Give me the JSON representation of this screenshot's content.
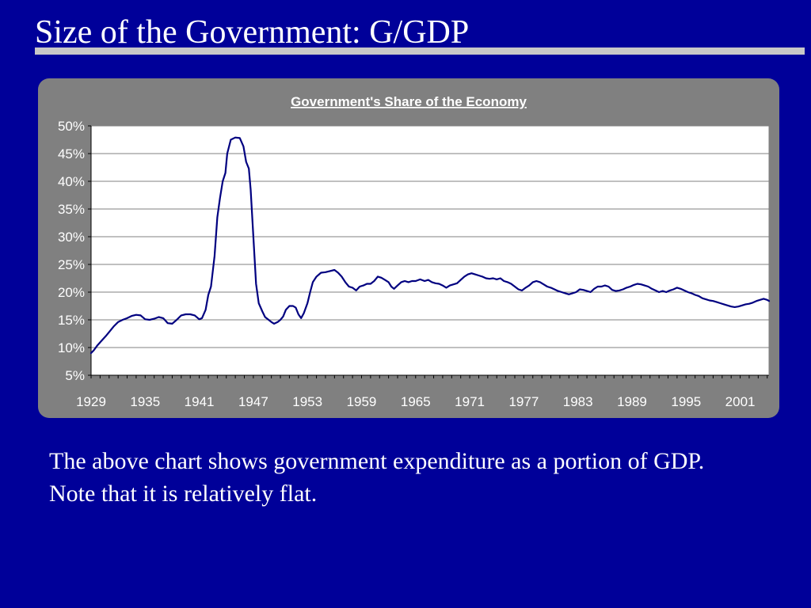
{
  "slide": {
    "title": "Size of the Government: G/GDP",
    "body_text": "The above chart shows government expenditure as a portion of GDP. Note that it is relatively flat."
  },
  "colors": {
    "background": "#000099",
    "panel": "#808080",
    "plot_area": "#ffffff",
    "series_line": "#000080",
    "rule": "#c8c8c8"
  },
  "chart_data": {
    "type": "line",
    "title": "Government's Share of the Economy",
    "xlabel": "",
    "ylabel": "",
    "xlim": [
      1929,
      2004.2
    ],
    "ylim": [
      5,
      50
    ],
    "x_ticks": [
      1929,
      1935,
      1941,
      1947,
      1953,
      1959,
      1965,
      1971,
      1977,
      1983,
      1989,
      1995,
      2001
    ],
    "x_tick_labels": [
      "1929",
      "1935",
      "1941",
      "1947",
      "1953",
      "1959",
      "1965",
      "1971",
      "1977",
      "1983",
      "1989",
      "1995",
      "2001"
    ],
    "y_ticks": [
      5,
      10,
      15,
      20,
      25,
      30,
      35,
      40,
      45,
      50
    ],
    "y_tick_labels": [
      "5%",
      "10%",
      "15%",
      "20%",
      "25%",
      "30%",
      "35%",
      "40%",
      "45%",
      "50%"
    ],
    "grid": "horizontal",
    "legend": "none",
    "series": [
      {
        "values": [
          [
            1929.0,
            9.0
          ],
          [
            1929.3,
            9.5
          ],
          [
            1929.7,
            10.4
          ],
          [
            1930.2,
            11.3
          ],
          [
            1930.7,
            12.2
          ],
          [
            1931.0,
            12.8
          ],
          [
            1931.5,
            13.8
          ],
          [
            1932.0,
            14.6
          ],
          [
            1932.5,
            15.0
          ],
          [
            1933.0,
            15.3
          ],
          [
            1933.5,
            15.7
          ],
          [
            1934.0,
            15.9
          ],
          [
            1934.5,
            15.8
          ],
          [
            1935.0,
            15.1
          ],
          [
            1935.5,
            15.0
          ],
          [
            1936.0,
            15.2
          ],
          [
            1936.5,
            15.5
          ],
          [
            1937.0,
            15.3
          ],
          [
            1937.5,
            14.4
          ],
          [
            1938.0,
            14.3
          ],
          [
            1938.5,
            15.0
          ],
          [
            1939.0,
            15.8
          ],
          [
            1939.5,
            16.0
          ],
          [
            1940.0,
            16.0
          ],
          [
            1940.5,
            15.8
          ],
          [
            1941.0,
            15.1
          ],
          [
            1941.3,
            15.3
          ],
          [
            1941.7,
            16.8
          ],
          [
            1942.0,
            19.5
          ],
          [
            1942.3,
            21.0
          ],
          [
            1942.7,
            26.5
          ],
          [
            1943.0,
            33.5
          ],
          [
            1943.3,
            37.0
          ],
          [
            1943.6,
            40.0
          ],
          [
            1943.9,
            41.5
          ],
          [
            1944.1,
            45.0
          ],
          [
            1944.5,
            47.5
          ],
          [
            1945.0,
            47.9
          ],
          [
            1945.5,
            47.8
          ],
          [
            1945.9,
            46.3
          ],
          [
            1946.2,
            43.5
          ],
          [
            1946.5,
            42.3
          ],
          [
            1946.7,
            38.5
          ],
          [
            1947.0,
            30.0
          ],
          [
            1947.3,
            21.5
          ],
          [
            1947.6,
            18.0
          ],
          [
            1948.0,
            16.5
          ],
          [
            1948.3,
            15.5
          ],
          [
            1948.7,
            15.0
          ],
          [
            1949.0,
            14.6
          ],
          [
            1949.3,
            14.3
          ],
          [
            1949.7,
            14.6
          ],
          [
            1950.0,
            15.0
          ],
          [
            1950.3,
            15.6
          ],
          [
            1950.6,
            16.8
          ],
          [
            1951.0,
            17.5
          ],
          [
            1951.4,
            17.5
          ],
          [
            1951.7,
            17.2
          ],
          [
            1952.0,
            16.0
          ],
          [
            1952.3,
            15.3
          ],
          [
            1952.6,
            16.2
          ],
          [
            1953.0,
            18.0
          ],
          [
            1953.3,
            20.0
          ],
          [
            1953.6,
            21.8
          ],
          [
            1954.0,
            22.8
          ],
          [
            1954.5,
            23.5
          ],
          [
            1955.0,
            23.6
          ],
          [
            1955.5,
            23.8
          ],
          [
            1956.0,
            24.0
          ],
          [
            1956.4,
            23.5
          ],
          [
            1956.8,
            22.8
          ],
          [
            1957.2,
            21.8
          ],
          [
            1957.6,
            21.0
          ],
          [
            1958.0,
            20.8
          ],
          [
            1958.4,
            20.3
          ],
          [
            1958.8,
            21.0
          ],
          [
            1959.2,
            21.2
          ],
          [
            1959.6,
            21.5
          ],
          [
            1960.0,
            21.5
          ],
          [
            1960.4,
            22.0
          ],
          [
            1960.8,
            22.8
          ],
          [
            1961.2,
            22.6
          ],
          [
            1961.6,
            22.2
          ],
          [
            1962.0,
            21.8
          ],
          [
            1962.3,
            21.0
          ],
          [
            1962.6,
            20.6
          ],
          [
            1963.0,
            21.2
          ],
          [
            1963.4,
            21.8
          ],
          [
            1963.8,
            22.0
          ],
          [
            1964.2,
            21.8
          ],
          [
            1964.6,
            22.0
          ],
          [
            1965.0,
            22.0
          ],
          [
            1965.5,
            22.3
          ],
          [
            1966.0,
            22.0
          ],
          [
            1966.4,
            22.2
          ],
          [
            1966.8,
            21.8
          ],
          [
            1967.2,
            21.6
          ],
          [
            1967.6,
            21.5
          ],
          [
            1968.0,
            21.2
          ],
          [
            1968.4,
            20.8
          ],
          [
            1968.8,
            21.2
          ],
          [
            1969.2,
            21.4
          ],
          [
            1969.6,
            21.6
          ],
          [
            1970.0,
            22.2
          ],
          [
            1970.4,
            22.8
          ],
          [
            1970.8,
            23.2
          ],
          [
            1971.2,
            23.4
          ],
          [
            1971.6,
            23.2
          ],
          [
            1972.0,
            23.0
          ],
          [
            1972.4,
            22.8
          ],
          [
            1972.8,
            22.5
          ],
          [
            1973.2,
            22.4
          ],
          [
            1973.6,
            22.5
          ],
          [
            1974.0,
            22.3
          ],
          [
            1974.4,
            22.5
          ],
          [
            1974.8,
            22.0
          ],
          [
            1975.2,
            21.8
          ],
          [
            1975.6,
            21.5
          ],
          [
            1976.0,
            21.0
          ],
          [
            1976.4,
            20.5
          ],
          [
            1976.8,
            20.3
          ],
          [
            1977.2,
            20.8
          ],
          [
            1977.6,
            21.2
          ],
          [
            1978.0,
            21.8
          ],
          [
            1978.4,
            22.0
          ],
          [
            1978.8,
            21.8
          ],
          [
            1979.2,
            21.4
          ],
          [
            1979.6,
            21.0
          ],
          [
            1980.0,
            20.8
          ],
          [
            1980.4,
            20.5
          ],
          [
            1980.8,
            20.2
          ],
          [
            1981.2,
            20.0
          ],
          [
            1981.6,
            19.8
          ],
          [
            1982.0,
            19.6
          ],
          [
            1982.4,
            19.8
          ],
          [
            1982.8,
            20.0
          ],
          [
            1983.2,
            20.5
          ],
          [
            1983.6,
            20.4
          ],
          [
            1984.0,
            20.2
          ],
          [
            1984.4,
            20.0
          ],
          [
            1984.8,
            20.6
          ],
          [
            1985.2,
            21.0
          ],
          [
            1985.6,
            21.0
          ],
          [
            1986.0,
            21.2
          ],
          [
            1986.4,
            21.0
          ],
          [
            1986.8,
            20.4
          ],
          [
            1987.2,
            20.2
          ],
          [
            1987.6,
            20.3
          ],
          [
            1988.0,
            20.5
          ],
          [
            1988.4,
            20.8
          ],
          [
            1988.8,
            21.0
          ],
          [
            1989.2,
            21.3
          ],
          [
            1989.6,
            21.5
          ],
          [
            1990.0,
            21.4
          ],
          [
            1990.4,
            21.2
          ],
          [
            1990.8,
            21.0
          ],
          [
            1991.2,
            20.6
          ],
          [
            1991.6,
            20.3
          ],
          [
            1992.0,
            20.0
          ],
          [
            1992.4,
            20.2
          ],
          [
            1992.8,
            20.0
          ],
          [
            1993.2,
            20.3
          ],
          [
            1993.6,
            20.5
          ],
          [
            1994.0,
            20.8
          ],
          [
            1994.4,
            20.6
          ],
          [
            1994.8,
            20.3
          ],
          [
            1995.2,
            20.0
          ],
          [
            1995.6,
            19.8
          ],
          [
            1996.0,
            19.5
          ],
          [
            1996.4,
            19.3
          ],
          [
            1996.8,
            18.9
          ],
          [
            1997.2,
            18.7
          ],
          [
            1997.6,
            18.5
          ],
          [
            1998.0,
            18.4
          ],
          [
            1998.4,
            18.2
          ],
          [
            1998.8,
            18.0
          ],
          [
            1999.2,
            17.8
          ],
          [
            1999.6,
            17.6
          ],
          [
            2000.0,
            17.4
          ],
          [
            2000.4,
            17.3
          ],
          [
            2000.8,
            17.4
          ],
          [
            2001.2,
            17.6
          ],
          [
            2001.6,
            17.8
          ],
          [
            2002.0,
            17.9
          ],
          [
            2002.4,
            18.1
          ],
          [
            2002.8,
            18.4
          ],
          [
            2003.2,
            18.6
          ],
          [
            2003.6,
            18.8
          ],
          [
            2004.0,
            18.6
          ],
          [
            2004.2,
            18.4
          ]
        ]
      }
    ]
  }
}
